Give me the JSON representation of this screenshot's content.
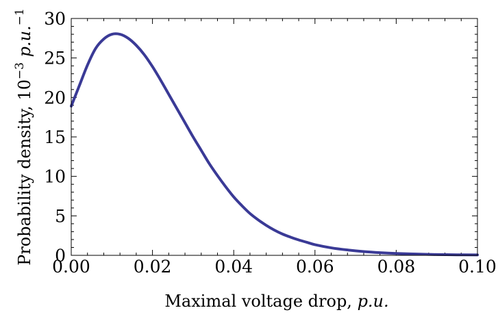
{
  "chart_data": {
    "type": "line",
    "title": "",
    "xlabel": "Maximal voltage drop, ",
    "xlabel_unit": "p.u.",
    "ylabel": "Probability density,  10",
    "ylabel_exp": "−3",
    "ylabel_unit": " p.u.",
    "ylabel_unit_exp": "−1",
    "xlim": [
      0,
      0.1
    ],
    "ylim": [
      0,
      30
    ],
    "xticks": [
      0.0,
      0.02,
      0.04,
      0.06,
      0.08,
      0.1
    ],
    "xtick_labels": [
      "0.00",
      "0.02",
      "0.04",
      "0.06",
      "0.08",
      "0.10"
    ],
    "yticks": [
      0,
      5,
      10,
      15,
      20,
      25,
      30
    ],
    "ytick_labels": [
      "0",
      "5",
      "10",
      "15",
      "20",
      "25",
      "30"
    ],
    "grid": false,
    "legend": "none",
    "series": [
      {
        "color": "#3a3a96",
        "x": [
          0.0,
          0.002,
          0.004,
          0.006,
          0.008,
          0.01,
          0.012,
          0.014,
          0.016,
          0.018,
          0.02,
          0.022,
          0.024,
          0.026,
          0.028,
          0.03,
          0.032,
          0.034,
          0.036,
          0.038,
          0.04,
          0.042,
          0.044,
          0.046,
          0.048,
          0.05,
          0.052,
          0.054,
          0.056,
          0.058,
          0.06,
          0.064,
          0.068,
          0.072,
          0.076,
          0.08,
          0.085,
          0.09,
          0.095,
          0.1
        ],
        "y": [
          18.9,
          21.5,
          24.1,
          26.2,
          27.4,
          28.0,
          28.0,
          27.5,
          26.6,
          25.4,
          23.9,
          22.2,
          20.4,
          18.6,
          16.8,
          15.0,
          13.3,
          11.6,
          10.1,
          8.7,
          7.4,
          6.3,
          5.3,
          4.5,
          3.8,
          3.2,
          2.7,
          2.3,
          1.95,
          1.65,
          1.35,
          0.95,
          0.68,
          0.48,
          0.34,
          0.24,
          0.16,
          0.1,
          0.07,
          0.05
        ]
      }
    ]
  }
}
